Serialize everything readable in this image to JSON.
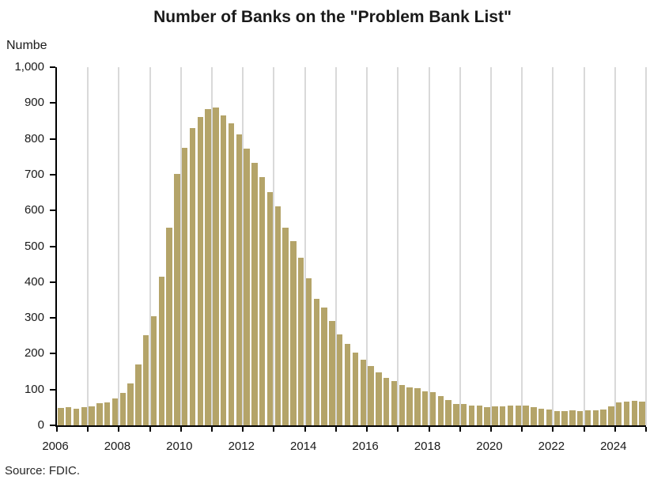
{
  "title": "Number of Banks on the \"Problem Bank List\"",
  "y_axis_title_display": "Numbe",
  "source": "Source: FDIC.",
  "colors": {
    "bar": "#b4a469",
    "gridline": "#d9d9d9",
    "axis": "#000000",
    "text": "#1a1a1a"
  },
  "chart_data": {
    "type": "bar",
    "title": "Number of Banks on the \"Problem Bank List\"",
    "xlabel": "",
    "ylabel": "Number",
    "ylabel_display": "Numbe",
    "source": "Source: FDIC.",
    "frequency": "quarterly",
    "ylim": [
      0,
      1000
    ],
    "grid": "vertical-yearly",
    "legend": "none",
    "x_axis_start_year": 2006,
    "x_axis_end_year": 2025,
    "y_ticks": [
      0,
      100,
      200,
      300,
      400,
      500,
      600,
      700,
      800,
      900,
      1000
    ],
    "y_tick_labels": [
      "0",
      "100",
      "200",
      "300",
      "400",
      "500",
      "600",
      "700",
      "800",
      "900",
      "1,000"
    ],
    "x_tick_years": [
      2006,
      2007,
      2008,
      2009,
      2010,
      2011,
      2012,
      2013,
      2014,
      2015,
      2016,
      2017,
      2018,
      2019,
      2020,
      2021,
      2022,
      2023,
      2024,
      2025
    ],
    "x_label_years": [
      "2006",
      "2008",
      "2010",
      "2012",
      "2014",
      "2016",
      "2018",
      "2020",
      "2022",
      "2024"
    ],
    "gridline_years": [
      2007,
      2008,
      2009,
      2010,
      2011,
      2012,
      2013,
      2014,
      2015,
      2016,
      2017,
      2018,
      2019,
      2020,
      2021,
      2022,
      2023,
      2024,
      2025
    ],
    "categories": [
      "2006 Q1",
      "2006 Q2",
      "2006 Q3",
      "2006 Q4",
      "2007 Q1",
      "2007 Q2",
      "2007 Q3",
      "2007 Q4",
      "2008 Q1",
      "2008 Q2",
      "2008 Q3",
      "2008 Q4",
      "2009 Q1",
      "2009 Q2",
      "2009 Q3",
      "2009 Q4",
      "2010 Q1",
      "2010 Q2",
      "2010 Q3",
      "2010 Q4",
      "2011 Q1",
      "2011 Q2",
      "2011 Q3",
      "2011 Q4",
      "2012 Q1",
      "2012 Q2",
      "2012 Q3",
      "2012 Q4",
      "2013 Q1",
      "2013 Q2",
      "2013 Q3",
      "2013 Q4",
      "2014 Q1",
      "2014 Q2",
      "2014 Q3",
      "2014 Q4",
      "2015 Q1",
      "2015 Q2",
      "2015 Q3",
      "2015 Q4",
      "2016 Q1",
      "2016 Q2",
      "2016 Q3",
      "2016 Q4",
      "2017 Q1",
      "2017 Q2",
      "2017 Q3",
      "2017 Q4",
      "2018 Q1",
      "2018 Q2",
      "2018 Q3",
      "2018 Q4",
      "2019 Q1",
      "2019 Q2",
      "2019 Q3",
      "2019 Q4",
      "2020 Q1",
      "2020 Q2",
      "2020 Q3",
      "2020 Q4",
      "2021 Q1",
      "2021 Q2",
      "2021 Q3",
      "2021 Q4",
      "2022 Q1",
      "2022 Q2",
      "2022 Q3",
      "2022 Q4",
      "2023 Q1",
      "2023 Q2",
      "2023 Q3",
      "2023 Q4",
      "2024 Q1",
      "2024 Q2",
      "2024 Q3",
      "2024 Q4"
    ],
    "values": [
      48,
      50,
      47,
      50,
      53,
      61,
      65,
      76,
      90,
      117,
      171,
      252,
      305,
      416,
      552,
      702,
      775,
      829,
      860,
      884,
      888,
      865,
      844,
      813,
      772,
      732,
      694,
      651,
      612,
      553,
      515,
      467,
      411,
      354,
      329,
      291,
      253,
      228,
      203,
      183,
      165,
      147,
      132,
      123,
      112,
      105,
      104,
      95,
      92,
      82,
      71,
      60,
      59,
      56,
      55,
      51,
      54,
      52,
      56,
      56,
      55,
      51,
      46,
      44,
      40,
      40,
      42,
      39,
      43,
      43,
      44,
      52,
      63,
      66,
      68,
      66
    ]
  }
}
